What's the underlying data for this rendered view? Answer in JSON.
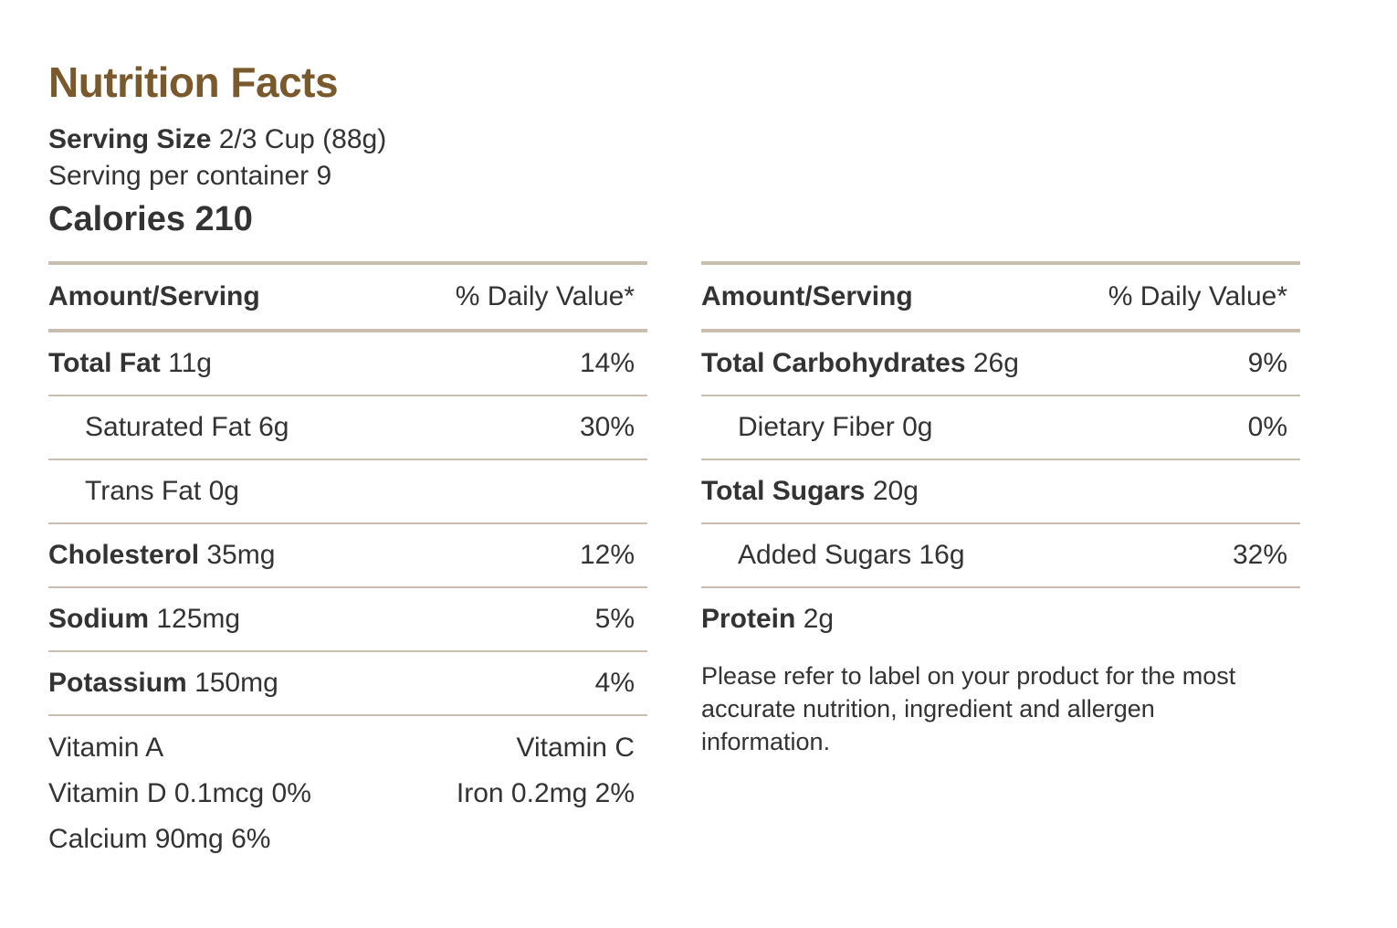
{
  "title": "Nutrition Facts",
  "serving": {
    "size_label": "Serving Size",
    "size_value": "2/3 Cup (88g)",
    "per_container": "Serving per container 9"
  },
  "calories": "Calories 210",
  "header": {
    "amount": "Amount/Serving",
    "daily": "% Daily Value*"
  },
  "left_rows": [
    {
      "name": "Total Fat",
      "amount": "11g",
      "dv": "14%",
      "bold": true
    },
    {
      "name": "Saturated Fat",
      "amount": "6g",
      "dv": "30%",
      "bold": false
    },
    {
      "name": "Trans Fat",
      "amount": "0g",
      "dv": "",
      "bold": false
    },
    {
      "name": "Cholesterol",
      "amount": "35mg",
      "dv": "12%",
      "bold": true
    },
    {
      "name": "Sodium",
      "amount": "125mg",
      "dv": "5%",
      "bold": true
    },
    {
      "name": "Potassium",
      "amount": "150mg",
      "dv": "4%",
      "bold": true
    }
  ],
  "vitamins": {
    "line1_left": "Vitamin A",
    "line1_right": "Vitamin C",
    "line2_left": "Vitamin D 0.1mcg 0%",
    "line2_right": "Iron 0.2mg 2%",
    "line3_left": "Calcium 90mg 6%"
  },
  "right_rows": [
    {
      "name": "Total Carbohydrates",
      "amount": "26g",
      "dv": "9%",
      "bold": true
    },
    {
      "name": "Dietary Fiber",
      "amount": "0g",
      "dv": "0%",
      "bold": false
    },
    {
      "name": "Total Sugars",
      "amount": "20g",
      "dv": "",
      "bold": true
    },
    {
      "name": "Added Sugars",
      "amount": "16g",
      "dv": "32%",
      "bold": false
    },
    {
      "name": "Protein",
      "amount": "2g",
      "dv": "",
      "bold": true
    }
  ],
  "disclaimer": "Please refer to label on your product for the most accurate nutrition, ingredient and allergen information.",
  "colors": {
    "title": "#7a5a2c",
    "rule": "#c9bdb0",
    "text": "#333333"
  }
}
